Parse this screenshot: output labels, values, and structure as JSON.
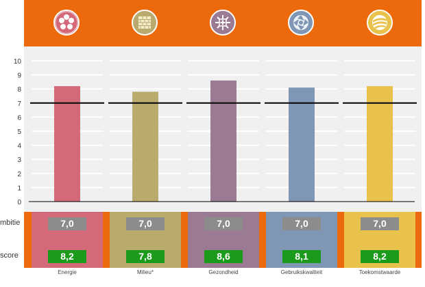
{
  "header": {
    "background": "#ec6a0c",
    "icons": [
      {
        "name": "energie-flower-icon",
        "color": "#d4697a"
      },
      {
        "name": "milieu-brick-icon",
        "color": "#b9ab6e"
      },
      {
        "name": "gezondheid-cross-icon",
        "color": "#9a7b93"
      },
      {
        "name": "gebruikskwaliteit-aperture-icon",
        "color": "#7f97b4"
      },
      {
        "name": "toekomstwaarde-sphere-icon",
        "color": "#e9c24b"
      }
    ]
  },
  "chart_data": {
    "type": "bar",
    "categories": [
      "Energie",
      "Milieu*",
      "Gezondheid",
      "Gebruikskwaliteit",
      "Toekomstwaarde"
    ],
    "values": [
      8.2,
      7.8,
      8.6,
      8.1,
      8.2
    ],
    "colors": [
      "#d4697a",
      "#b9ab6e",
      "#9a7b93",
      "#7f97b4",
      "#e9c24b"
    ],
    "ambition": [
      7.0,
      7.0,
      7.0,
      7.0,
      7.0
    ],
    "ylim": [
      0,
      10
    ],
    "yticks": [
      "0",
      "1",
      "2",
      "3",
      "4",
      "5",
      "6",
      "7",
      "8",
      "9",
      "10"
    ],
    "grid": true,
    "title": "",
    "xlabel": "",
    "ylabel": ""
  },
  "score_table": {
    "ambitie_label": "mbitie",
    "score_label": "score",
    "ambitie_values": [
      "7,0",
      "7,0",
      "7,0",
      "7,0",
      "7,0"
    ],
    "score_values": [
      "8,2",
      "7,8",
      "8,6",
      "8,1",
      "8,2"
    ]
  }
}
